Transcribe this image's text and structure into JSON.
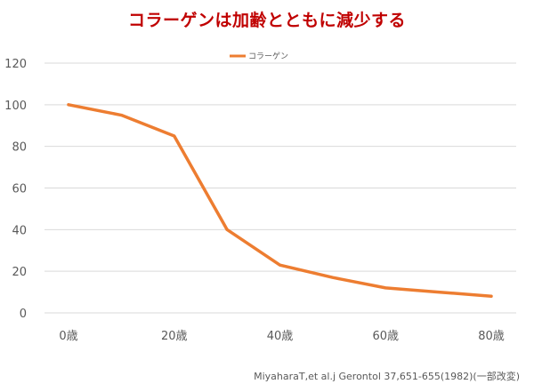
{
  "chart_data": {
    "type": "line",
    "title": "コラーゲンは加齢とともに減少する",
    "xlabel": "",
    "ylabel": "",
    "ylim": [
      0,
      120
    ],
    "y_ticks": [
      0,
      20,
      40,
      60,
      80,
      100,
      120
    ],
    "x_tick_labels": [
      "0歳",
      "20歳",
      "40歳",
      "60歳",
      "80歳"
    ],
    "x": [
      0,
      10,
      20,
      30,
      40,
      50,
      60,
      70,
      80
    ],
    "series": [
      {
        "name": "コラーゲン",
        "color": "#ed7d31",
        "values": [
          100,
          95,
          85,
          40,
          23,
          17,
          12,
          10,
          8
        ]
      }
    ],
    "grid": true,
    "legend": "top-center",
    "source": "MiyaharaT,et al.j Gerontol   37,651-655(1982)(一部改変)"
  }
}
